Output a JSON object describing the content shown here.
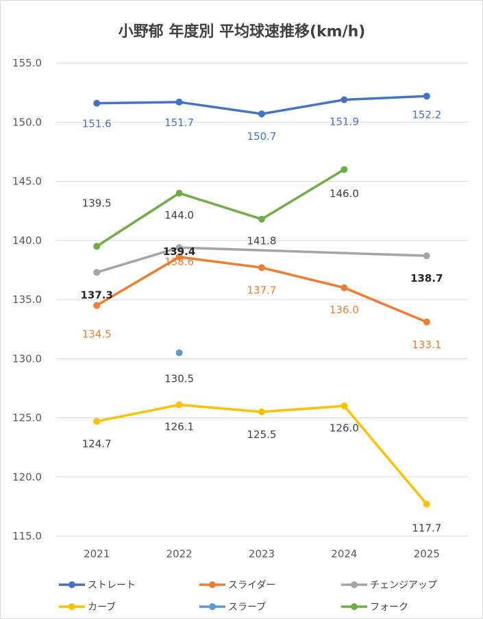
{
  "chart_data": {
    "type": "line",
    "title": "小野郁 年度別 平均球速推移(km/h)",
    "categories": [
      "2021",
      "2022",
      "2023",
      "2024",
      "2025"
    ],
    "ylim": [
      115.0,
      155.0
    ],
    "yticks": [
      "155.0",
      "150.0",
      "145.0",
      "140.0",
      "135.0",
      "130.0",
      "125.0",
      "120.0",
      "115.0"
    ],
    "grid": true,
    "legend_position": "bottom",
    "series": [
      {
        "name": "ストレート",
        "color": "#4472C4",
        "values": [
          151.6,
          151.7,
          150.7,
          151.9,
          152.2
        ],
        "labels": [
          "151.6",
          "151.7",
          "150.7",
          "151.9",
          "152.2"
        ]
      },
      {
        "name": "スライダー",
        "color": "#ED7D31",
        "values": [
          134.5,
          138.6,
          137.7,
          136.0,
          133.1
        ],
        "labels": [
          "134.5",
          "138.6",
          "137.7",
          "136.0",
          "133.1"
        ]
      },
      {
        "name": "チェンジアップ",
        "color": "#A5A5A5",
        "values": [
          137.3,
          139.4,
          null,
          null,
          138.7
        ],
        "labels": [
          "137.3",
          "139.4",
          "",
          "",
          "138.7"
        ]
      },
      {
        "name": "カーブ",
        "color": "#FFC000",
        "values": [
          124.7,
          126.1,
          125.5,
          126.0,
          117.7
        ],
        "labels": [
          "124.7",
          "126.1",
          "125.5",
          "126.0",
          "117.7"
        ]
      },
      {
        "name": "スラーブ",
        "color": "#5B9BD5",
        "values": [
          null,
          130.5,
          null,
          null,
          null
        ],
        "labels": [
          "",
          "130.5",
          "",
          "",
          ""
        ]
      },
      {
        "name": "フォーク",
        "color": "#70AD47",
        "values": [
          139.5,
          144.0,
          141.8,
          146.0,
          null
        ],
        "labels": [
          "139.5",
          "144.0",
          "141.8",
          "146.0",
          ""
        ]
      }
    ]
  }
}
